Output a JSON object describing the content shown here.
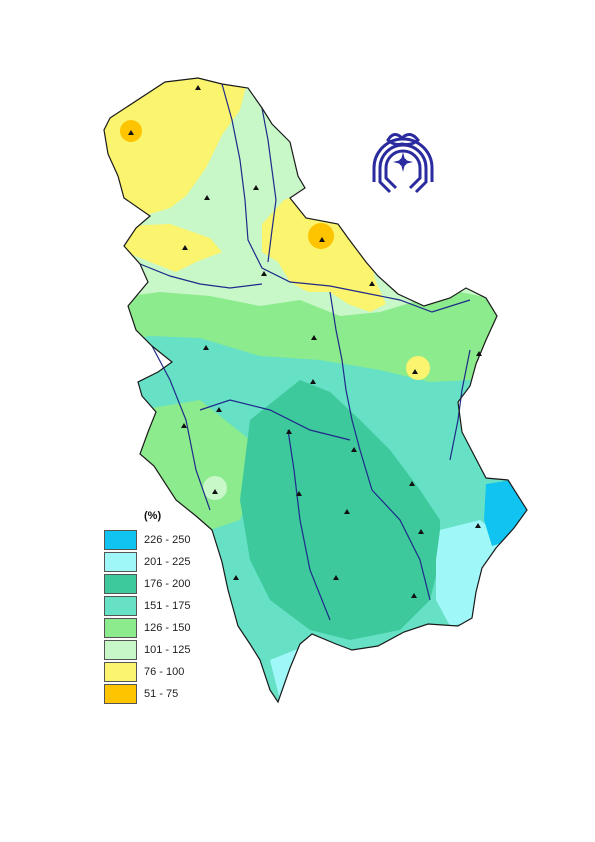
{
  "legend": {
    "title": "(%)",
    "classes": [
      {
        "label": "226 - 250",
        "color": "#11c3f0"
      },
      {
        "label": "201 - 225",
        "color": "#9ff7f7"
      },
      {
        "label": "176 - 200",
        "color": "#3dc99c"
      },
      {
        "label": "151 - 175",
        "color": "#66e1c5"
      },
      {
        "label": "126 - 150",
        "color": "#8ceb8c"
      },
      {
        "label": "101 - 125",
        "color": "#c8f7c8"
      },
      {
        "label": "76 - 100",
        "color": "#fbf46e"
      },
      {
        "label": "51 - 75",
        "color": "#fec400"
      }
    ]
  },
  "colors": {
    "river": "#1f2a8a",
    "border": "#1a1a1a",
    "station": "#111111",
    "logo": "#2b2ba0"
  },
  "logo": {
    "icon": "institution-emblem-icon"
  }
}
